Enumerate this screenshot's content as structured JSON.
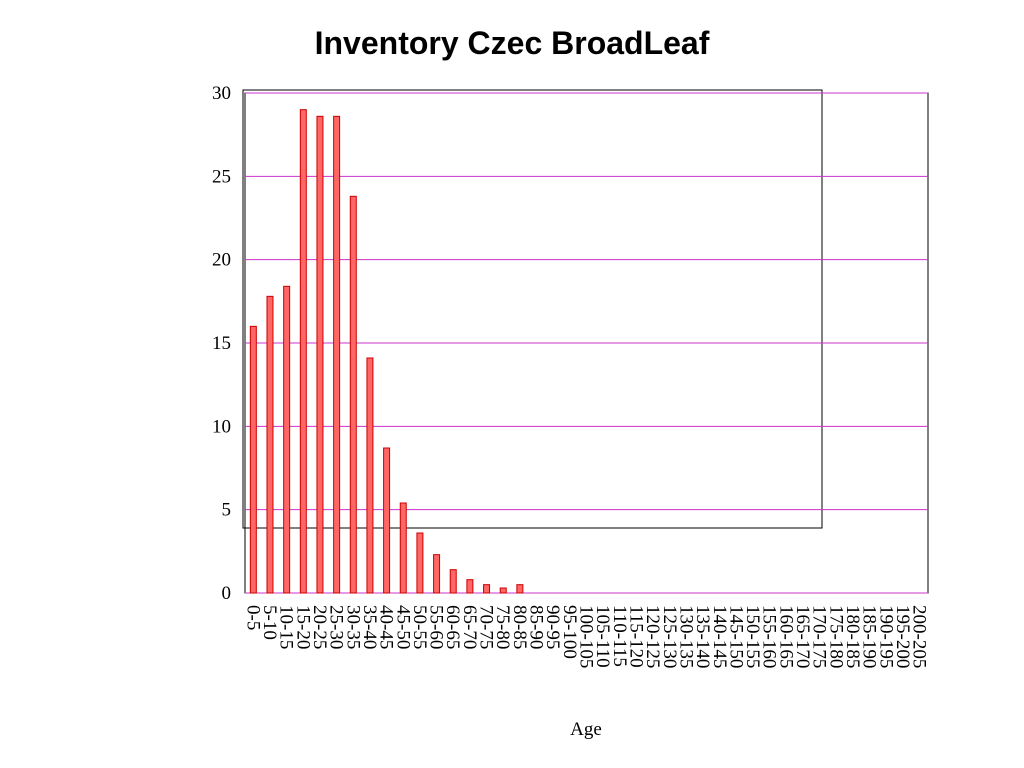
{
  "chart_data": {
    "type": "bar",
    "title": "Inventory Czec BroadLeaf",
    "x_label": "Age",
    "categories": [
      "0-5",
      "5-10",
      "10-15",
      "15-20",
      "20-25",
      "25-30",
      "30-35",
      "35-40",
      "40-45",
      "45-50",
      "50-55",
      "55-60",
      "60-65",
      "65-70",
      "70-75",
      "75-80",
      "80-85",
      "85-90",
      "90-95",
      "95-100",
      "100-105",
      "105-110",
      "110-115",
      "115-120",
      "120-125",
      "125-130",
      "130-135",
      "135-140",
      "140-145",
      "145-150",
      "150-155",
      "155-160",
      "160-165",
      "165-170",
      "170-175",
      "175-180",
      "180-185",
      "185-190",
      "190-195",
      "195-200",
      "200-205"
    ],
    "values": [
      16,
      17.8,
      18.4,
      29,
      28.6,
      28.6,
      23.8,
      14.1,
      8.7,
      5.4,
      3.6,
      2.3,
      1.4,
      0.8,
      0.5,
      0.3,
      0.5,
      0,
      0,
      0,
      0,
      0,
      0,
      0,
      0,
      0,
      0,
      0,
      0,
      0,
      0,
      0,
      0,
      0,
      0,
      0,
      0,
      0,
      0,
      0,
      0
    ],
    "color": "#ff6666",
    "ylim": [
      0,
      30
    ],
    "yticks": [
      0,
      5,
      10,
      15,
      20,
      25,
      30
    ],
    "grid": true
  }
}
